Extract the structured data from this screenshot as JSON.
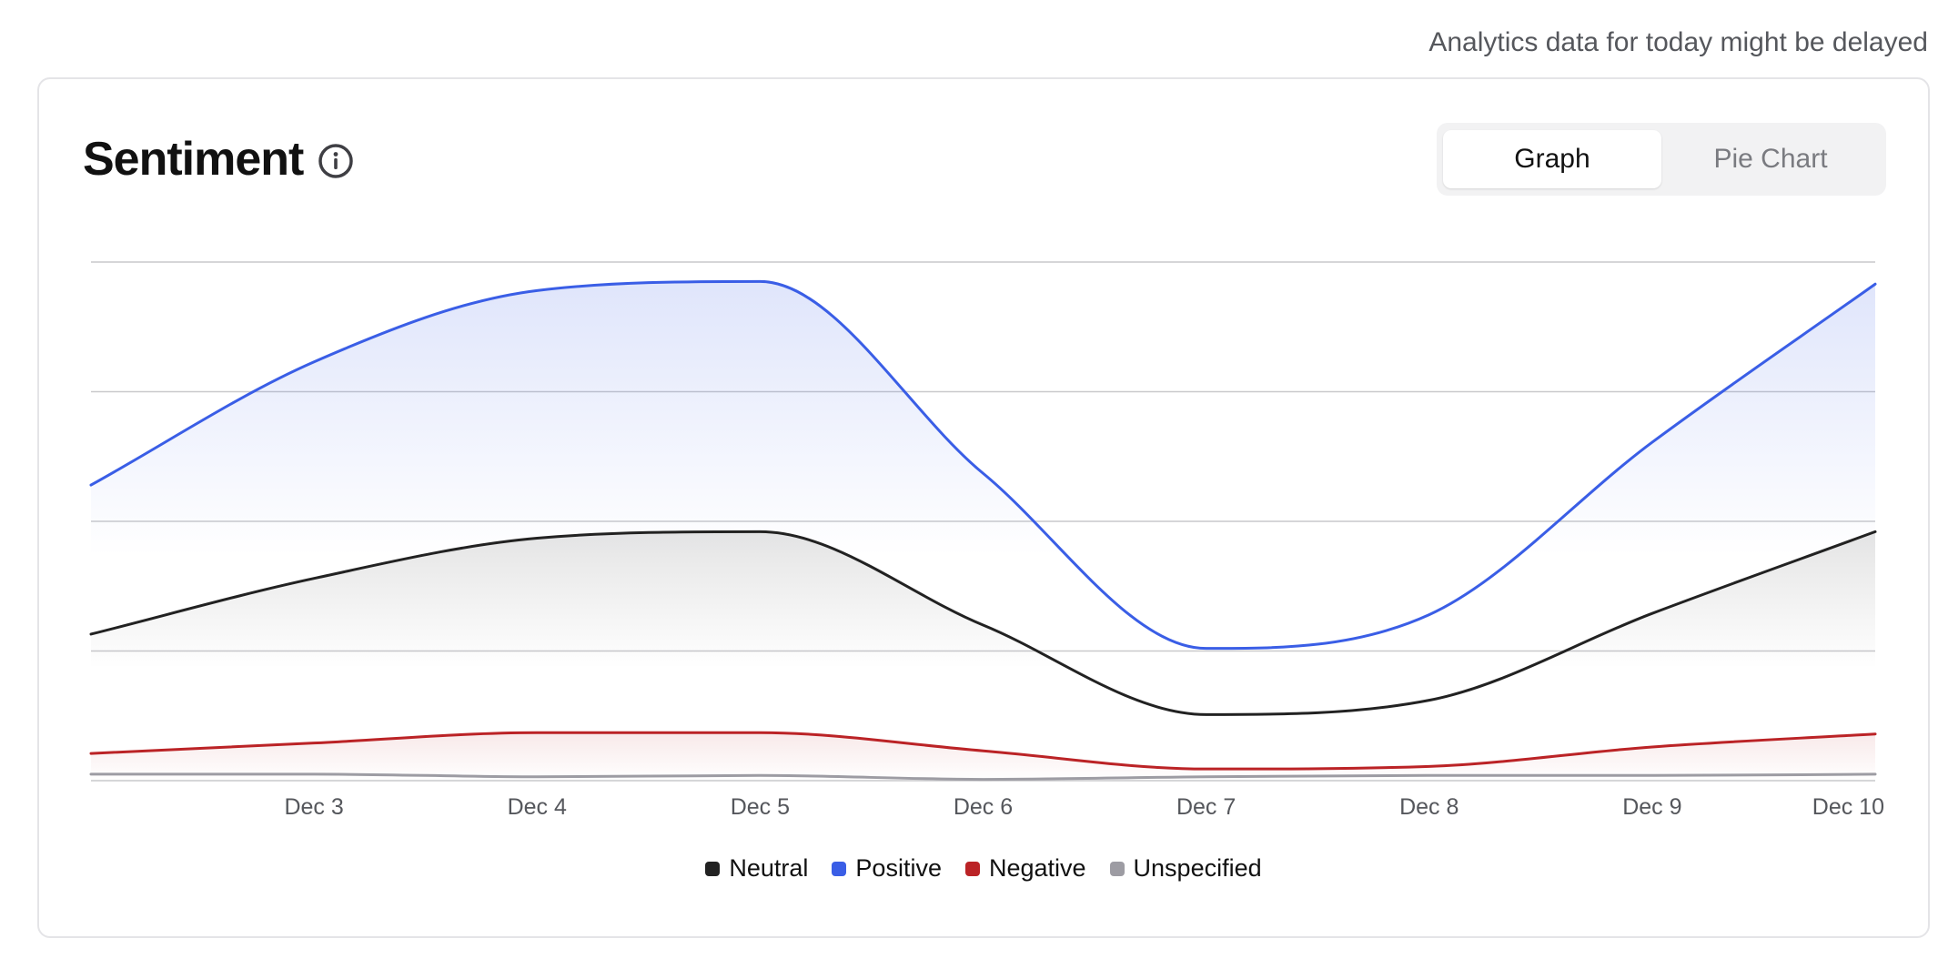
{
  "notice": "Analytics data for today might be delayed",
  "card": {
    "title": "Sentiment",
    "info_icon": "info-circle-icon",
    "toggle": {
      "graph_label": "Graph",
      "pie_label": "Pie Chart",
      "selected": "Graph"
    }
  },
  "chart_data": {
    "type": "area",
    "title": "Sentiment",
    "x_start": 2,
    "x_end": 10,
    "categories": [
      "Dec 3",
      "Dec 4",
      "Dec 5",
      "Dec 6",
      "Dec 7",
      "Dec 8",
      "Dec 9",
      "Dec 10"
    ],
    "ylim": [
      0,
      40
    ],
    "grid": true,
    "y_tick_labels_shown": false,
    "legend_position": "bottom-center",
    "series": [
      {
        "name": "Neutral",
        "color": "#222222",
        "x": [
          2,
          3,
          4,
          5,
          6,
          7,
          8,
          9,
          10
        ],
        "values": [
          11.3,
          15.6,
          18.7,
          19.2,
          12.0,
          5.1,
          6.2,
          12.9,
          19.2
        ],
        "fill": true
      },
      {
        "name": "Positive",
        "color": "#3a5ee6",
        "x": [
          2,
          3,
          4,
          5,
          6,
          7,
          8,
          9,
          10
        ],
        "values": [
          22.8,
          32.3,
          37.8,
          38.5,
          23.7,
          10.2,
          12.8,
          26.1,
          38.3
        ],
        "fill": true
      },
      {
        "name": "Negative",
        "color": "#bb2326",
        "x": [
          2,
          3,
          4,
          5,
          6,
          7,
          8,
          9,
          10
        ],
        "values": [
          2.1,
          2.9,
          3.7,
          3.7,
          2.3,
          0.9,
          1.1,
          2.6,
          3.6
        ],
        "fill": false
      },
      {
        "name": "Unspecified",
        "color": "#9d9ca3",
        "x": [
          2,
          3,
          4,
          5,
          6,
          7,
          8,
          9,
          10
        ],
        "values": [
          0.5,
          0.5,
          0.3,
          0.4,
          0.1,
          0.3,
          0.4,
          0.4,
          0.5
        ],
        "fill": false
      }
    ]
  }
}
